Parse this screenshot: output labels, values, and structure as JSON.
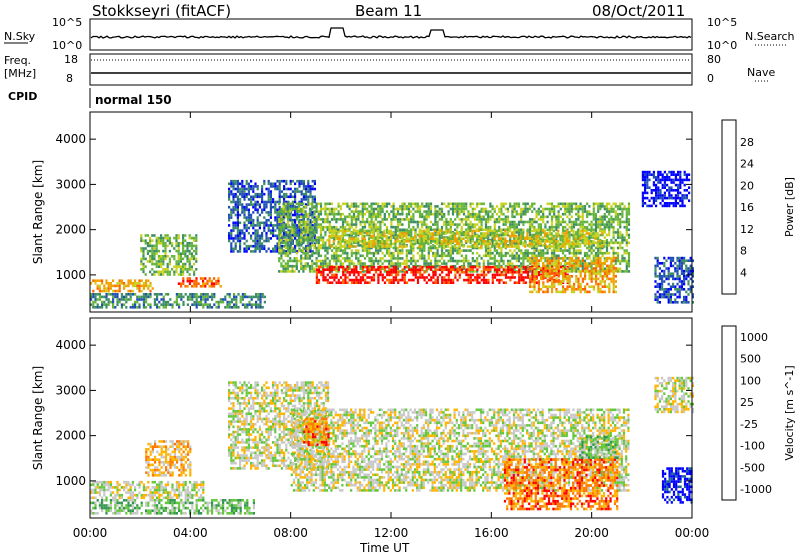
{
  "header": {
    "title": "Stokkseyri (fitACF)",
    "beam": "Beam 11",
    "date": "08/Oct/2011"
  },
  "sky_panel": {
    "label": "N.Sky",
    "tick_top": "10^5",
    "tick_bottom": "10^0",
    "right_tick_top": "10^5",
    "right_tick_bottom": "10^0",
    "right_label": "N.Search"
  },
  "freq_panel": {
    "label_line1": "Freq.",
    "label_line2": "[MHz]",
    "tick_top": "18",
    "tick_bottom": "8",
    "right_tick_top": "80",
    "right_tick_bottom": "0",
    "right_label": "Nave"
  },
  "cpid": {
    "label": "CPID",
    "mode": "normal 150"
  },
  "chart_data": [
    {
      "type": "heatmap",
      "quantity": "Power",
      "ylabel": "Slant Range [km]",
      "ylim": [
        180,
        4600
      ],
      "yticks": [
        "4000",
        "3000",
        "2000",
        "1000"
      ],
      "xlim_hours": [
        0,
        24
      ],
      "colorbar": {
        "label": "Power [dB]",
        "ticks": [
          "28",
          "24",
          "20",
          "16",
          "12",
          "8",
          "4"
        ],
        "colors": [
          "#0000ff",
          "#2050b4",
          "#3c8c64",
          "#64b43c",
          "#c8d21e",
          "#f0a000",
          "#ff6400",
          "#ff0000"
        ]
      },
      "echo_regions": [
        {
          "t0": 0.0,
          "t1": 2.5,
          "r0": 650,
          "r1": 900,
          "level": 5
        },
        {
          "t0": 2.0,
          "t1": 4.2,
          "r0": 1000,
          "r1": 1900,
          "level": 3
        },
        {
          "t0": 3.5,
          "t1": 5.2,
          "r0": 750,
          "r1": 950,
          "level": 6
        },
        {
          "t0": 0.0,
          "t1": 7.0,
          "r0": 300,
          "r1": 600,
          "level": 2
        },
        {
          "t0": 5.5,
          "t1": 9.0,
          "r0": 1500,
          "r1": 3100,
          "level": 1
        },
        {
          "t0": 7.5,
          "t1": 21.5,
          "r0": 1100,
          "r1": 2600,
          "level": 3
        },
        {
          "t0": 9.0,
          "t1": 19.0,
          "r0": 800,
          "r1": 1200,
          "level": 7
        },
        {
          "t0": 9.5,
          "t1": 20.5,
          "r0": 1600,
          "r1": 2000,
          "level": 4
        },
        {
          "t0": 17.5,
          "t1": 21.0,
          "r0": 600,
          "r1": 1400,
          "level": 5
        },
        {
          "t0": 22.0,
          "t1": 23.9,
          "r0": 2500,
          "r1": 3300,
          "level": 0
        },
        {
          "t0": 22.5,
          "t1": 24.0,
          "r0": 400,
          "r1": 1400,
          "level": 1
        }
      ]
    },
    {
      "type": "heatmap",
      "quantity": "Velocity",
      "ylabel": "Slant Range [km]",
      "ylim": [
        180,
        4600
      ],
      "yticks": [
        "4000",
        "3000",
        "2000",
        "1000"
      ],
      "xlim_hours": [
        0,
        24
      ],
      "xticks": [
        "00:00",
        "04:00",
        "08:00",
        "12:00",
        "16:00",
        "20:00",
        "00:00"
      ],
      "xlabel": "Time UT",
      "colorbar": {
        "label": "Velocity [m s^-1]",
        "ticks": [
          "1000",
          "500",
          "100",
          "25",
          "-25",
          "-100",
          "-500",
          "-1000"
        ],
        "colors": [
          "#0000ff",
          "#1e6496",
          "#329650",
          "#64c83c",
          "#c8c8c8",
          "#ffb400",
          "#ff7800",
          "#ff0000"
        ]
      },
      "echo_regions": [
        {
          "t0": 0.0,
          "t1": 4.5,
          "r0": 600,
          "r1": 1000,
          "level": 4
        },
        {
          "t0": 2.2,
          "t1": 4.0,
          "r0": 1100,
          "r1": 1900,
          "level": 5
        },
        {
          "t0": 0.0,
          "t1": 6.5,
          "r0": 300,
          "r1": 600,
          "level": 3
        },
        {
          "t0": 5.5,
          "t1": 9.5,
          "r0": 1300,
          "r1": 3200,
          "level": 4
        },
        {
          "t0": 8.0,
          "t1": 21.5,
          "r0": 800,
          "r1": 2600,
          "level": 4
        },
        {
          "t0": 8.5,
          "t1": 9.5,
          "r0": 1800,
          "r1": 2400,
          "level": 6
        },
        {
          "t0": 16.5,
          "t1": 21.0,
          "r0": 400,
          "r1": 1500,
          "level": 6
        },
        {
          "t0": 19.5,
          "t1": 21.0,
          "r0": 1500,
          "r1": 2000,
          "level": 3
        },
        {
          "t0": 22.5,
          "t1": 24.0,
          "r0": 2500,
          "r1": 3300,
          "level": 4
        },
        {
          "t0": 22.8,
          "t1": 24.0,
          "r0": 500,
          "r1": 1300,
          "level": 0
        }
      ]
    }
  ]
}
